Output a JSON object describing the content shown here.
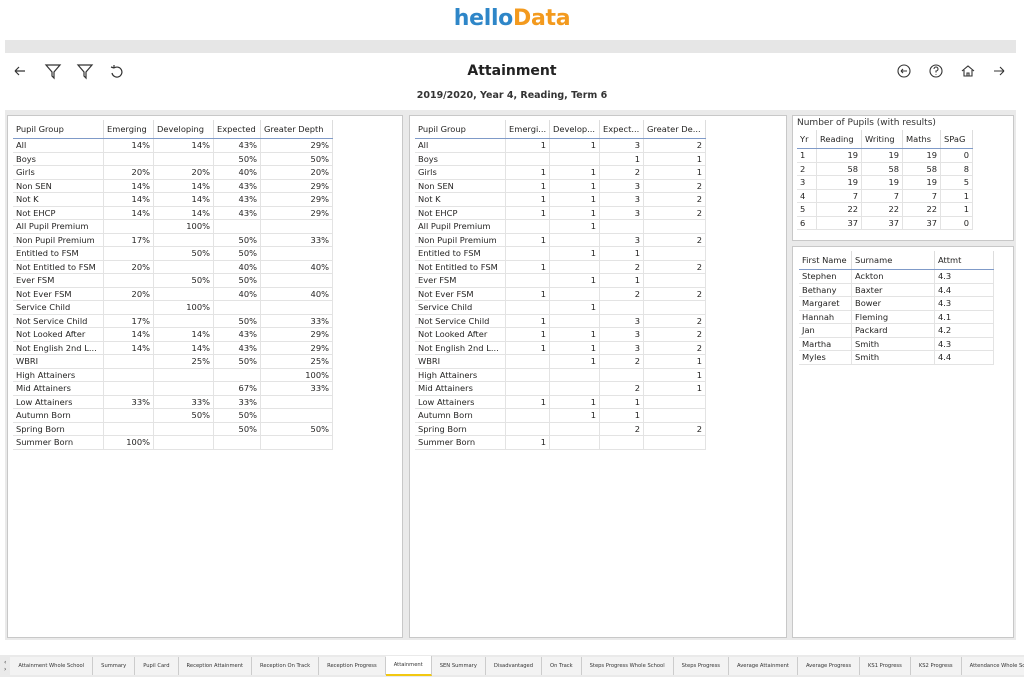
{
  "header": {
    "logo_hello": "hello",
    "logo_data": "Data",
    "title": "Attainment",
    "subtitle": "2019/2020, Year 4, Reading, Term 6"
  },
  "percent_table": {
    "columns": [
      "Pupil Group",
      "Emerging",
      "Developing",
      "Expected",
      "Greater Depth"
    ],
    "rows": [
      [
        "All",
        "14%",
        "14%",
        "43%",
        "29%"
      ],
      [
        "Boys",
        null,
        null,
        "50%",
        "50%"
      ],
      [
        "Girls",
        "20%",
        "20%",
        "40%",
        "20%"
      ],
      [
        "Non SEN",
        "14%",
        "14%",
        "43%",
        "29%"
      ],
      [
        "Not K",
        "14%",
        "14%",
        "43%",
        "29%"
      ],
      [
        "Not EHCP",
        "14%",
        "14%",
        "43%",
        "29%"
      ],
      [
        "All Pupil Premium",
        null,
        "100%",
        null,
        null
      ],
      [
        "Non Pupil Premium",
        "17%",
        null,
        "50%",
        "33%"
      ],
      [
        "Entitled to FSM",
        null,
        "50%",
        "50%",
        null
      ],
      [
        "Not Entitled to FSM",
        "20%",
        null,
        "40%",
        "40%"
      ],
      [
        "Ever FSM",
        null,
        "50%",
        "50%",
        null
      ],
      [
        "Not Ever FSM",
        "20%",
        null,
        "40%",
        "40%"
      ],
      [
        "Service Child",
        null,
        "100%",
        null,
        null
      ],
      [
        "Not Service Child",
        "17%",
        null,
        "50%",
        "33%"
      ],
      [
        "Not Looked After",
        "14%",
        "14%",
        "43%",
        "29%"
      ],
      [
        "Not English 2nd L...",
        "14%",
        "14%",
        "43%",
        "29%"
      ],
      [
        "WBRI",
        null,
        "25%",
        "50%",
        "25%"
      ],
      [
        "High Attainers",
        null,
        null,
        null,
        "100%"
      ],
      [
        "Mid Attainers",
        null,
        null,
        "67%",
        "33%"
      ],
      [
        "Low Attainers",
        "33%",
        "33%",
        "33%",
        null
      ],
      [
        "Autumn Born",
        null,
        "50%",
        "50%",
        null
      ],
      [
        "Spring Born",
        null,
        null,
        "50%",
        "50%"
      ],
      [
        "Summer Born",
        "100%",
        null,
        null,
        null
      ]
    ]
  },
  "count_table": {
    "columns": [
      "Pupil Group",
      "Emergi...",
      "Develop...",
      "Expect...",
      "Greater De..."
    ],
    "rows": [
      [
        "All",
        "1",
        "1",
        "3",
        "2"
      ],
      [
        "Boys",
        null,
        null,
        "1",
        "1"
      ],
      [
        "Girls",
        "1",
        "1",
        "2",
        "1"
      ],
      [
        "Non SEN",
        "1",
        "1",
        "3",
        "2"
      ],
      [
        "Not K",
        "1",
        "1",
        "3",
        "2"
      ],
      [
        "Not EHCP",
        "1",
        "1",
        "3",
        "2"
      ],
      [
        "All Pupil Premium",
        null,
        "1",
        null,
        null
      ],
      [
        "Non Pupil Premium",
        "1",
        null,
        "3",
        "2"
      ],
      [
        "Entitled to FSM",
        null,
        "1",
        "1",
        null
      ],
      [
        "Not Entitled to FSM",
        "1",
        null,
        "2",
        "2"
      ],
      [
        "Ever FSM",
        null,
        "1",
        "1",
        null
      ],
      [
        "Not Ever FSM",
        "1",
        null,
        "2",
        "2"
      ],
      [
        "Service Child",
        null,
        "1",
        null,
        null
      ],
      [
        "Not Service Child",
        "1",
        null,
        "3",
        "2"
      ],
      [
        "Not Looked After",
        "1",
        "1",
        "3",
        "2"
      ],
      [
        "Not English 2nd L...",
        "1",
        "1",
        "3",
        "2"
      ],
      [
        "WBRI",
        null,
        "1",
        "2",
        "1"
      ],
      [
        "High Attainers",
        null,
        null,
        null,
        "1"
      ],
      [
        "Mid Attainers",
        null,
        null,
        "2",
        "1"
      ],
      [
        "Low Attainers",
        "1",
        "1",
        "1",
        null
      ],
      [
        "Autumn Born",
        null,
        "1",
        "1",
        null
      ],
      [
        "Spring Born",
        null,
        null,
        "2",
        "2"
      ],
      [
        "Summer Born",
        "1",
        null,
        null,
        null
      ]
    ]
  },
  "pupils_table": {
    "title": "Number of Pupils (with results)",
    "columns": [
      "Yr",
      "Reading",
      "Writing",
      "Maths",
      "SPaG"
    ],
    "rows": [
      [
        "1",
        "19",
        "19",
        "19",
        "0"
      ],
      [
        "2",
        "58",
        "58",
        "58",
        "8"
      ],
      [
        "3",
        "19",
        "19",
        "19",
        "5"
      ],
      [
        "4",
        "7",
        "7",
        "7",
        "1"
      ],
      [
        "5",
        "22",
        "22",
        "22",
        "1"
      ],
      [
        "6",
        "37",
        "37",
        "37",
        "0"
      ]
    ]
  },
  "names_table": {
    "columns": [
      "First Name",
      "Surname",
      "Attmt"
    ],
    "rows": [
      [
        "Stephen",
        "Ackton",
        "4.3"
      ],
      [
        "Bethany",
        "Baxter",
        "4.4"
      ],
      [
        "Margaret",
        "Bower",
        "4.3"
      ],
      [
        "Hannah",
        "Fleming",
        "4.1"
      ],
      [
        "Jan",
        "Packard",
        "4.2"
      ],
      [
        "Martha",
        "Smith",
        "4.3"
      ],
      [
        "Myles",
        "Smith",
        "4.4"
      ]
    ]
  },
  "tabs": [
    "Attainment Whole School",
    "Summary",
    "Pupil Card",
    "Reception Attainment",
    "Reception On Track",
    "Reception Progress",
    "Attainment",
    "SEN Summary",
    "Disadvantaged",
    "On Track",
    "Steps Progress Whole School",
    "Steps Progress",
    "Average Attainment",
    "Average Progress",
    "KS1 Progress",
    "KS2 Progress",
    "Attendance Whole Sc..."
  ],
  "active_tab": 6
}
